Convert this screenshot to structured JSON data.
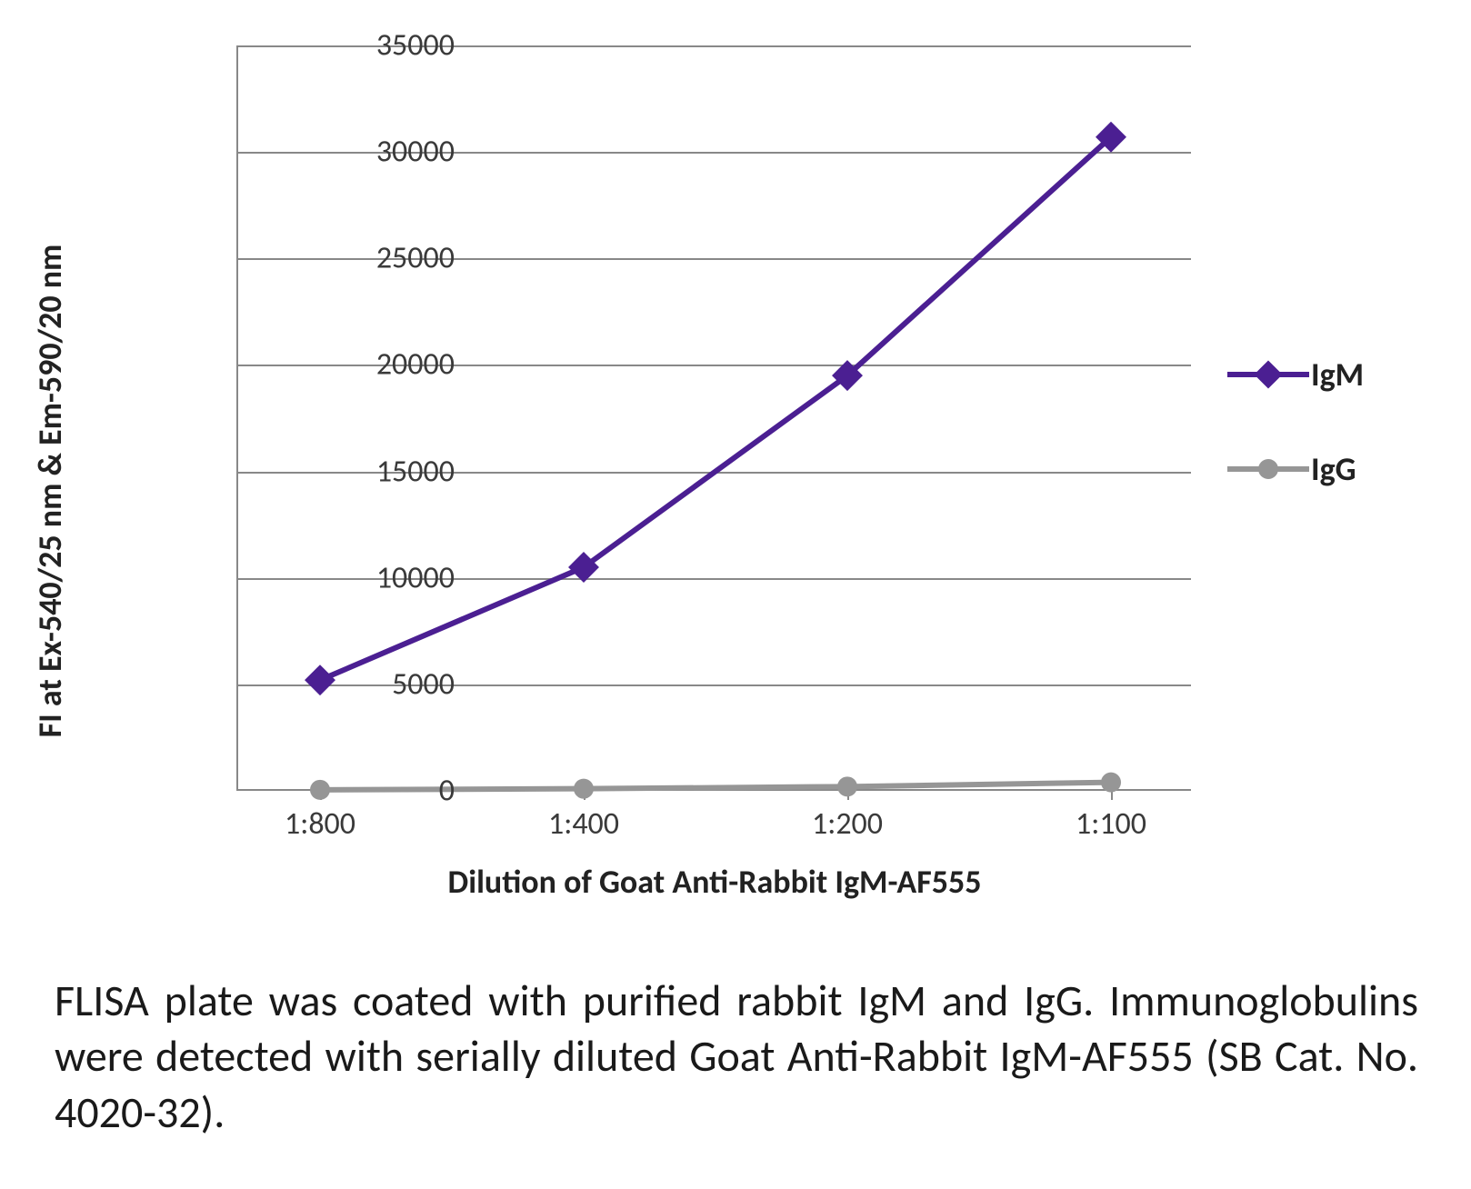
{
  "chart": {
    "type": "line",
    "background_color": "#ffffff",
    "grid_color": "#8a8a8a",
    "axis_color": "#8a8a8a",
    "tick_fontsize": 34,
    "axis_title_fontsize": 36,
    "legend_fontsize": 36,
    "y_axis": {
      "title": "FI at Ex-540/25 nm & Em-590/20 nm",
      "min": 0,
      "max": 35000,
      "tick_step": 5000,
      "ticks": [
        0,
        5000,
        10000,
        15000,
        20000,
        25000,
        30000,
        35000
      ]
    },
    "x_axis": {
      "title": "Dilution of Goat Anti-Rabbit IgM-AF555",
      "categories": [
        "1:800",
        "1:400",
        "1:200",
        "1:100"
      ]
    },
    "series": [
      {
        "name": "IgM",
        "color": "#4b1f92",
        "line_width": 6,
        "marker": "diamond",
        "marker_size": 24,
        "values": [
          5200,
          10500,
          19500,
          30700
        ]
      },
      {
        "name": "IgG",
        "color": "#969696",
        "line_width": 6,
        "marker": "circle",
        "marker_size": 22,
        "values": [
          50,
          100,
          200,
          400
        ]
      }
    ]
  },
  "caption": "FLISA plate was coated with purified rabbit IgM and IgG. Immunoglobulins were detected with serially diluted Goat Anti-Rabbit IgM-AF555 (SB Cat. No. 4020-32)."
}
